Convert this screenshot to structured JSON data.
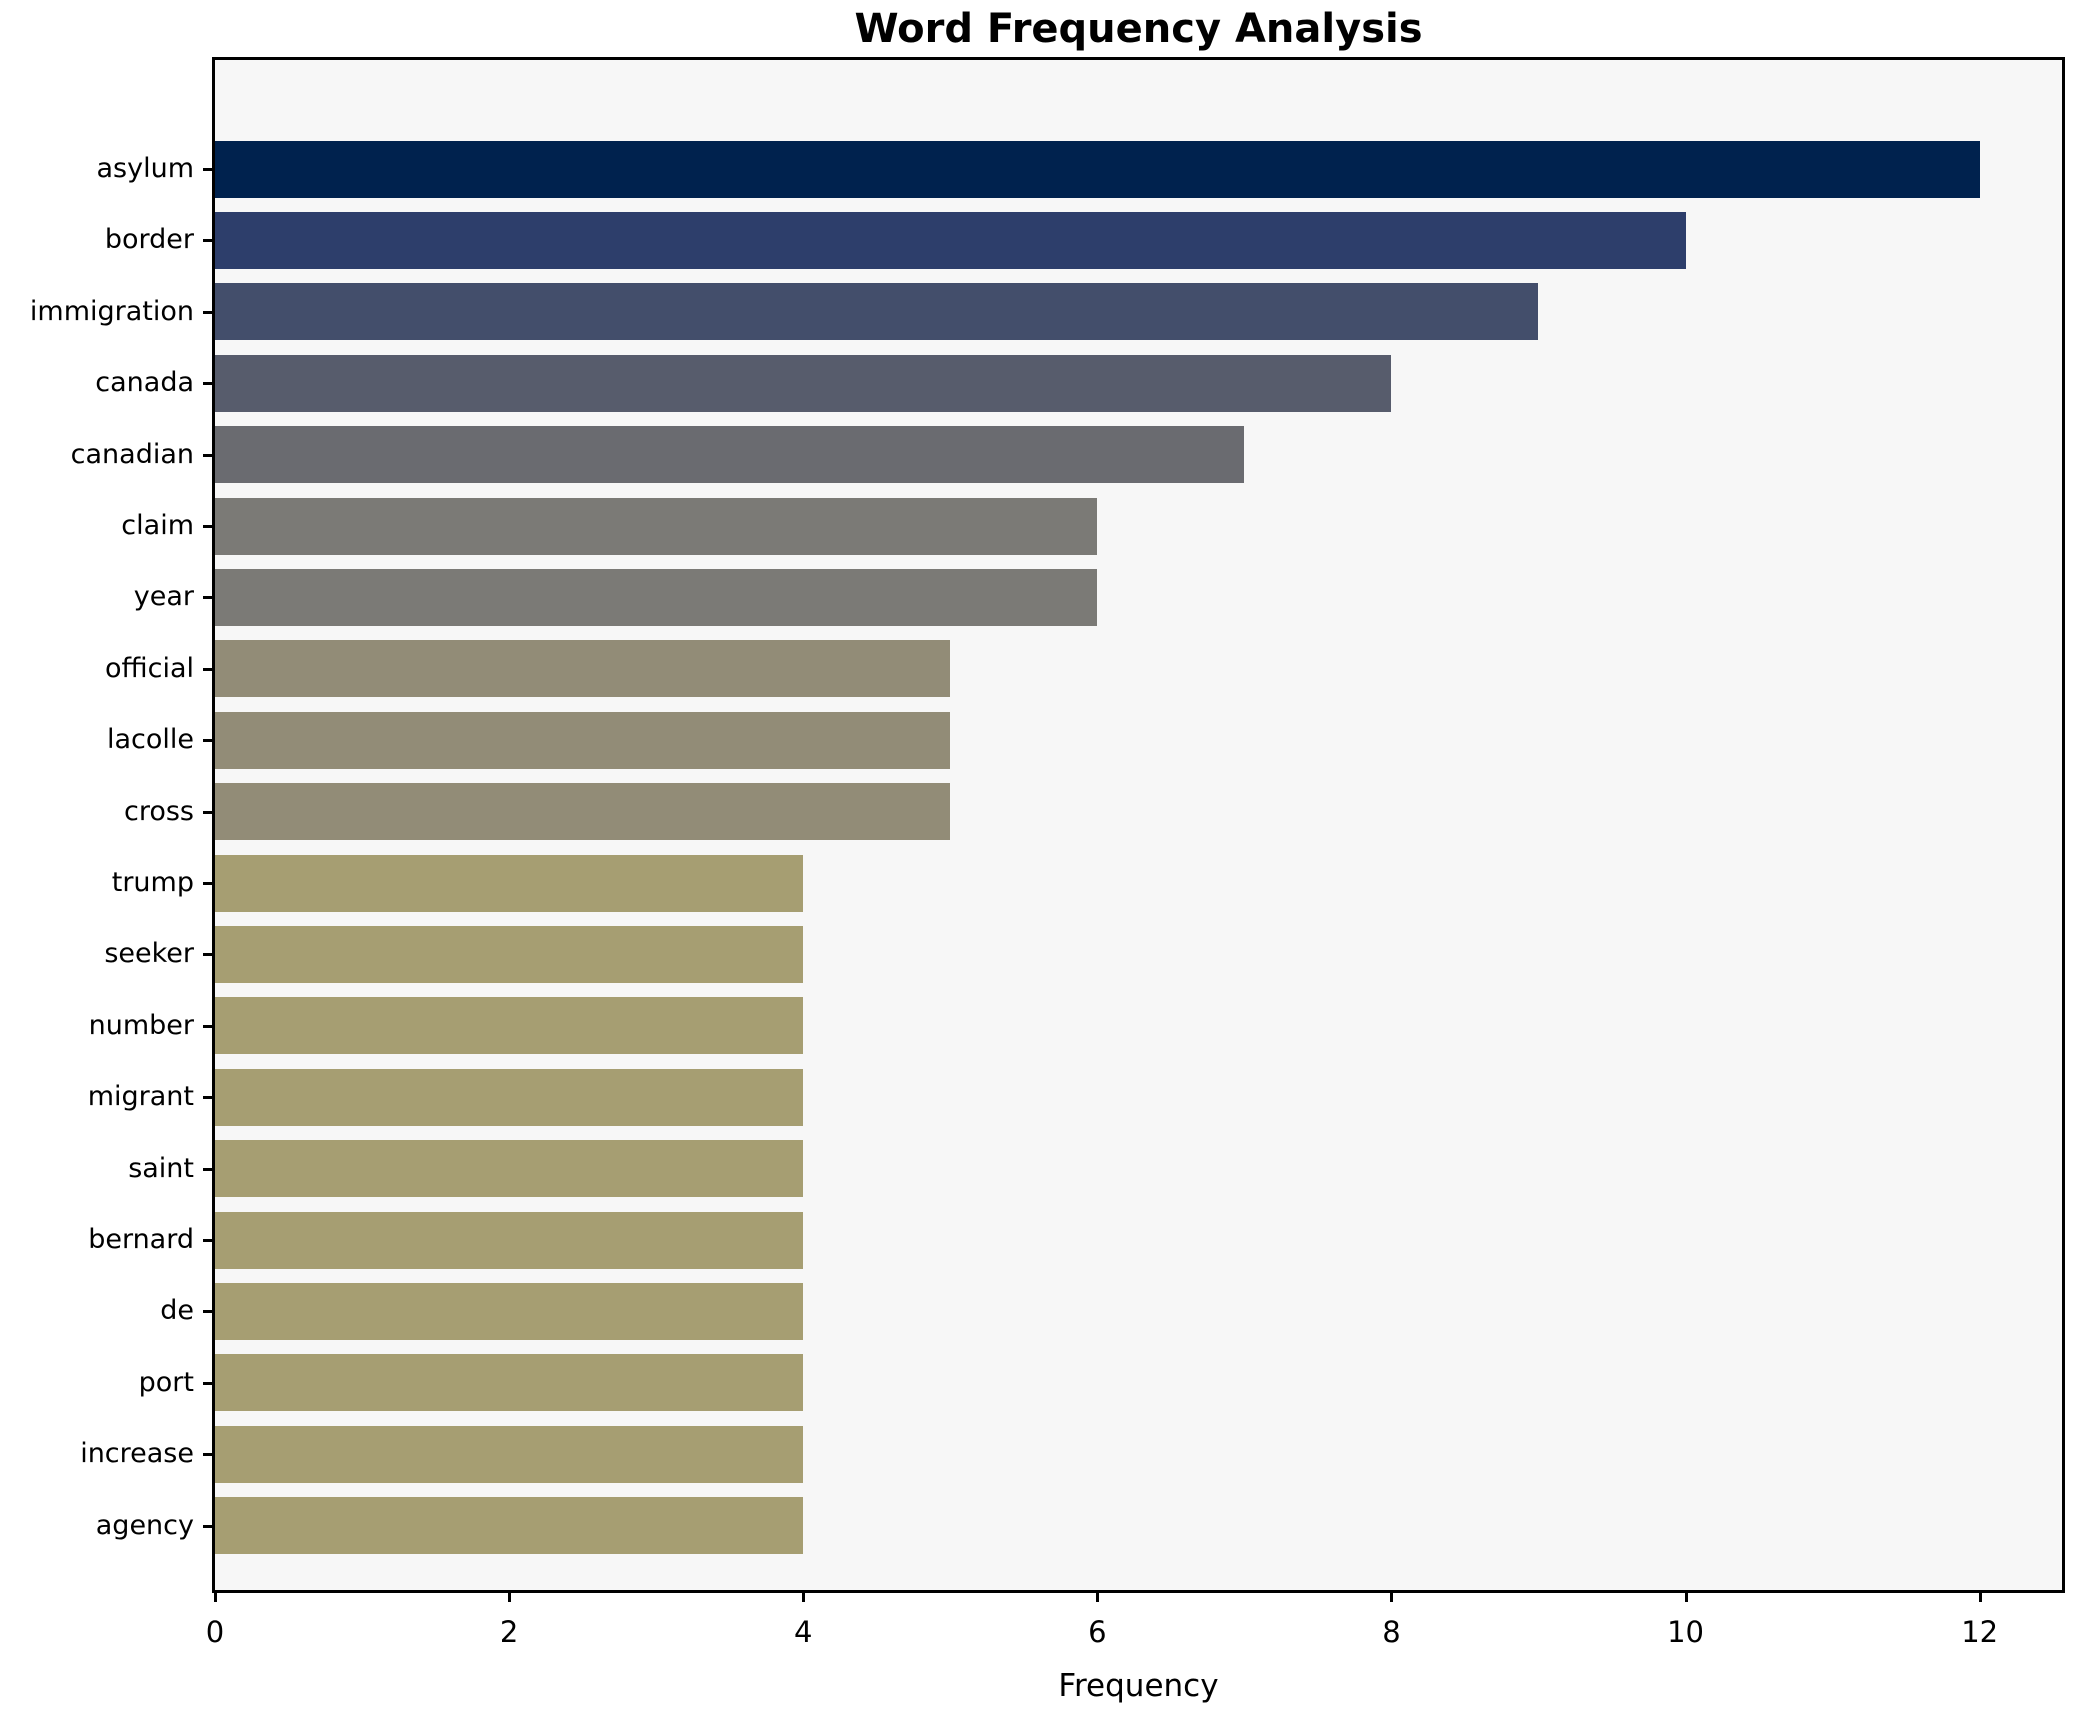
{
  "title": "Word Frequency Analysis",
  "chart_data": {
    "type": "bar",
    "orientation": "horizontal",
    "title": "Word Frequency Analysis",
    "xlabel": "Frequency",
    "ylabel": "",
    "categories": [
      "asylum",
      "border",
      "immigration",
      "canada",
      "canadian",
      "claim",
      "year",
      "official",
      "lacolle",
      "cross",
      "trump",
      "seeker",
      "number",
      "migrant",
      "saint",
      "bernard",
      "de",
      "port",
      "increase",
      "agency"
    ],
    "values": [
      12,
      10,
      9,
      8,
      7,
      6,
      6,
      5,
      5,
      5,
      4,
      4,
      4,
      4,
      4,
      4,
      4,
      4,
      4,
      4
    ],
    "bar_colors": [
      "#00224e",
      "#2d3e6b",
      "#434e6b",
      "#575c6c",
      "#6a6b70",
      "#7b7a76",
      "#7b7a76",
      "#928c77",
      "#928c77",
      "#928c77",
      "#a69e72",
      "#a69e72",
      "#a69e72",
      "#a69e72",
      "#a69e72",
      "#a69e72",
      "#a69e72",
      "#a69e72",
      "#a69e72",
      "#a69e72"
    ],
    "xticks": [
      0,
      2,
      4,
      6,
      8,
      10,
      12
    ],
    "xlim": [
      0,
      12.56
    ],
    "grid": false,
    "legend": null,
    "plot_background": "#f7f7f7",
    "figure_background": "#ffffff",
    "spine_color": "#000000"
  }
}
